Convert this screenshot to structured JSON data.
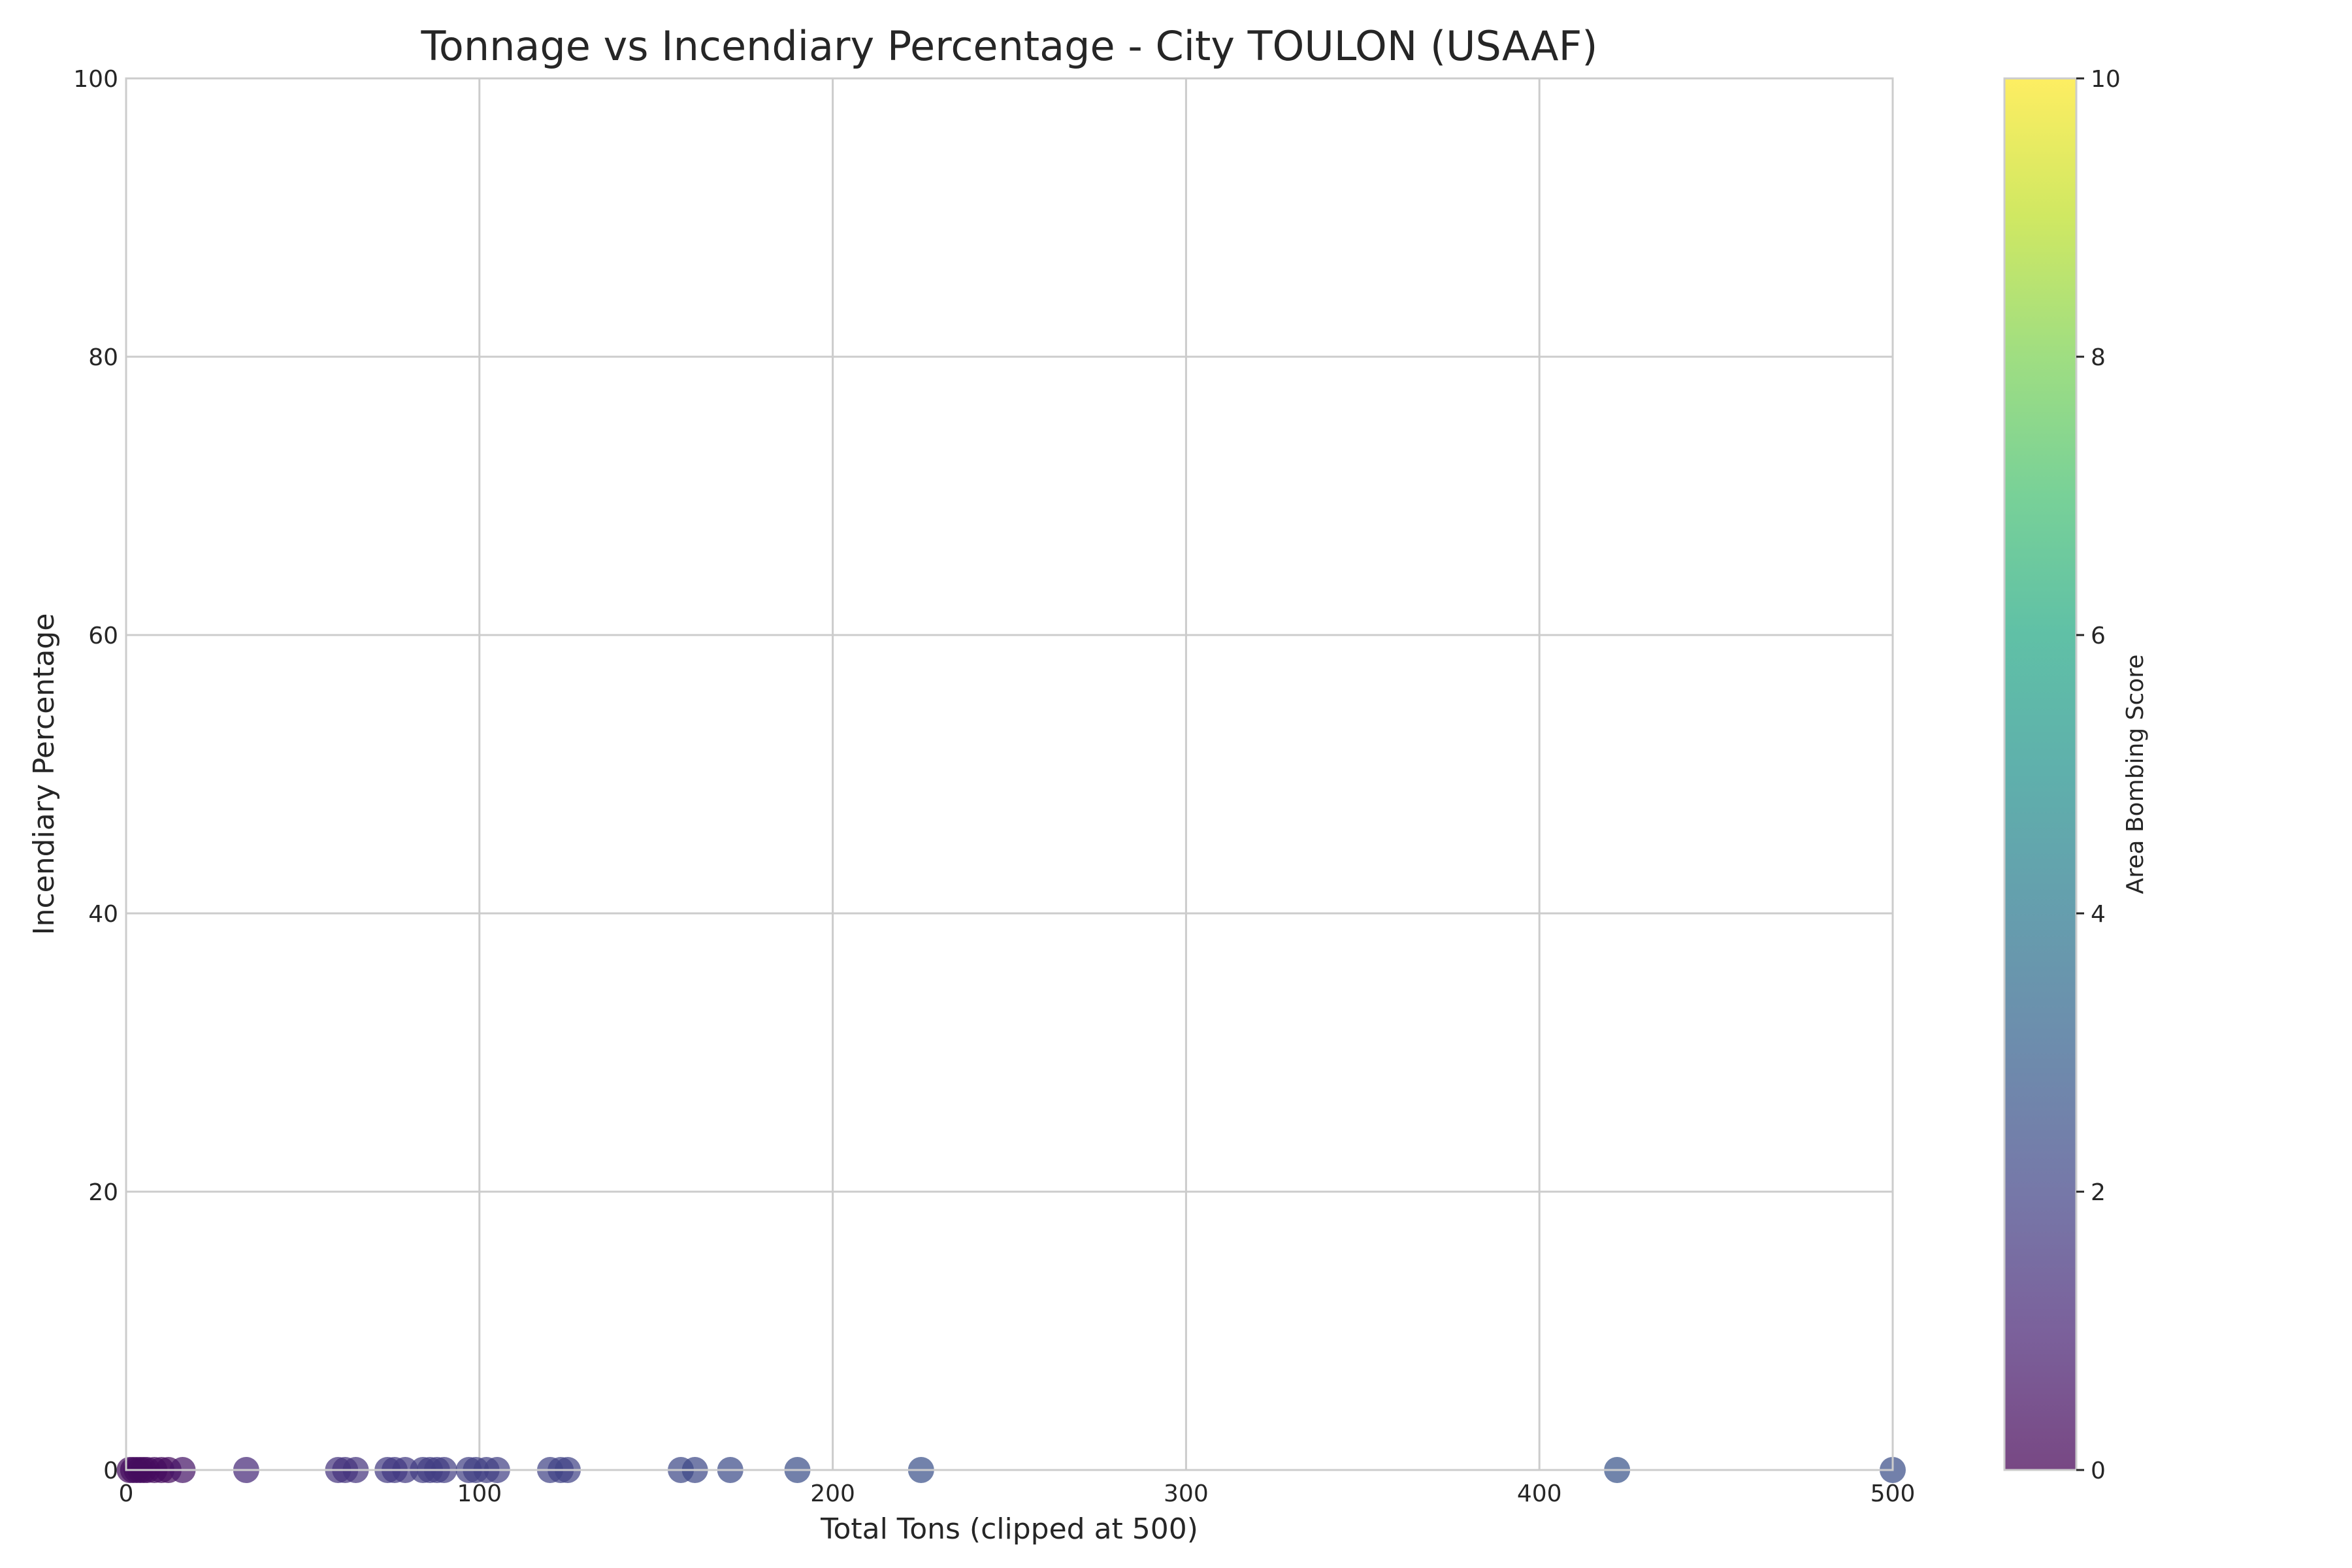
{
  "chart_data": {
    "type": "scatter",
    "title": "Tonnage vs Incendiary Percentage - City TOULON (USAAF)",
    "xlabel": "Total Tons (clipped at 500)",
    "ylabel": "Incendiary Percentage",
    "xlim": [
      0,
      500
    ],
    "ylim": [
      0,
      100
    ],
    "x_ticks": [
      0,
      100,
      200,
      300,
      400,
      500
    ],
    "y_ticks": [
      0,
      20,
      40,
      60,
      80,
      100
    ],
    "grid": true,
    "colorbar": {
      "label": "Area Bombing Score",
      "range": [
        0,
        10
      ],
      "ticks": [
        0,
        2,
        4,
        6,
        8,
        10
      ],
      "colormap": "viridis"
    },
    "points": [
      {
        "x": 1,
        "y": 0,
        "c": 0.3
      },
      {
        "x": 2,
        "y": 0,
        "c": 0.3
      },
      {
        "x": 3,
        "y": 0,
        "c": 0.3
      },
      {
        "x": 4,
        "y": 0,
        "c": 0.3
      },
      {
        "x": 5,
        "y": 0,
        "c": 0.3
      },
      {
        "x": 6,
        "y": 0,
        "c": 0.3
      },
      {
        "x": 8,
        "y": 0,
        "c": 0.3
      },
      {
        "x": 10,
        "y": 0,
        "c": 0.3
      },
      {
        "x": 12,
        "y": 0,
        "c": 0.3
      },
      {
        "x": 16,
        "y": 0,
        "c": 0.6
      },
      {
        "x": 34,
        "y": 0,
        "c": 1.2
      },
      {
        "x": 60,
        "y": 0,
        "c": 1.5
      },
      {
        "x": 62,
        "y": 0,
        "c": 1.5
      },
      {
        "x": 65,
        "y": 0,
        "c": 1.5
      },
      {
        "x": 74,
        "y": 0,
        "c": 1.7
      },
      {
        "x": 76,
        "y": 0,
        "c": 1.7
      },
      {
        "x": 79,
        "y": 0,
        "c": 1.7
      },
      {
        "x": 84,
        "y": 0,
        "c": 1.8
      },
      {
        "x": 86,
        "y": 0,
        "c": 1.8
      },
      {
        "x": 88,
        "y": 0,
        "c": 1.8
      },
      {
        "x": 90,
        "y": 0,
        "c": 1.8
      },
      {
        "x": 97,
        "y": 0,
        "c": 1.9
      },
      {
        "x": 99,
        "y": 0,
        "c": 1.9
      },
      {
        "x": 102,
        "y": 0,
        "c": 1.9
      },
      {
        "x": 105,
        "y": 0,
        "c": 1.9
      },
      {
        "x": 120,
        "y": 0,
        "c": 2.0
      },
      {
        "x": 123,
        "y": 0,
        "c": 2.0
      },
      {
        "x": 125,
        "y": 0,
        "c": 2.0
      },
      {
        "x": 157,
        "y": 0,
        "c": 2.2
      },
      {
        "x": 161,
        "y": 0,
        "c": 2.2
      },
      {
        "x": 171,
        "y": 0,
        "c": 2.3
      },
      {
        "x": 190,
        "y": 0,
        "c": 2.4
      },
      {
        "x": 225,
        "y": 0,
        "c": 2.5
      },
      {
        "x": 422,
        "y": 0,
        "c": 2.6
      },
      {
        "x": 500,
        "y": 0,
        "c": 2.4
      }
    ]
  }
}
